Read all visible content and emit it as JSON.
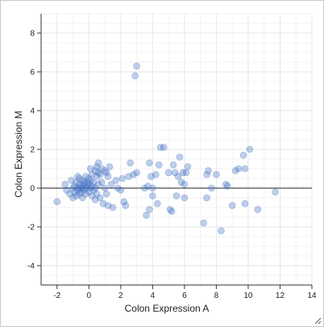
{
  "chart_data": {
    "type": "scatter",
    "title": "",
    "xlabel": "Colon Expression A",
    "ylabel": "Colon Expression M",
    "xlim": [
      -3,
      14
    ],
    "ylim": [
      -5,
      9
    ],
    "xticks": [
      -2,
      0,
      2,
      4,
      6,
      8,
      10,
      12,
      14
    ],
    "yticks": [
      -4,
      -2,
      0,
      2,
      4,
      6,
      8
    ],
    "grid": true,
    "zero_line": true,
    "point_color": "#4472c4",
    "point_opacity": 0.35,
    "points": [
      [
        -2.0,
        -0.7
      ],
      [
        -1.5,
        0.2
      ],
      [
        -1.4,
        -0.1
      ],
      [
        -1.2,
        -0.3
      ],
      [
        -1.1,
        0.4
      ],
      [
        -1.0,
        0.0
      ],
      [
        -1.0,
        -0.5
      ],
      [
        -0.9,
        0.1
      ],
      [
        -0.9,
        -0.2
      ],
      [
        -0.8,
        0.3
      ],
      [
        -0.8,
        -0.4
      ],
      [
        -0.7,
        0.6
      ],
      [
        -0.7,
        0.0
      ],
      [
        -0.7,
        -0.1
      ],
      [
        -0.6,
        0.2
      ],
      [
        -0.6,
        -0.3
      ],
      [
        -0.6,
        0.5
      ],
      [
        -0.5,
        0.0
      ],
      [
        -0.5,
        0.1
      ],
      [
        -0.5,
        -0.2
      ],
      [
        -0.4,
        0.4
      ],
      [
        -0.4,
        -0.5
      ],
      [
        -0.4,
        0.0
      ],
      [
        -0.3,
        0.2
      ],
      [
        -0.3,
        -0.1
      ],
      [
        -0.3,
        0.3
      ],
      [
        -0.2,
        0.0
      ],
      [
        -0.2,
        0.6
      ],
      [
        -0.2,
        -0.3
      ],
      [
        -0.1,
        0.1
      ],
      [
        -0.1,
        0.3
      ],
      [
        0.0,
        0.5
      ],
      [
        0.0,
        -0.2
      ],
      [
        0.0,
        0.2
      ],
      [
        0.1,
        0.4
      ],
      [
        0.1,
        0.0
      ],
      [
        0.1,
        1.0
      ],
      [
        0.2,
        0.1
      ],
      [
        0.2,
        -0.4
      ],
      [
        0.2,
        0.7
      ],
      [
        0.3,
        0.3
      ],
      [
        0.3,
        -0.1
      ],
      [
        0.4,
        0.9
      ],
      [
        0.4,
        0.0
      ],
      [
        0.4,
        -0.6
      ],
      [
        0.5,
        1.1
      ],
      [
        0.5,
        0.6
      ],
      [
        0.5,
        -0.3
      ],
      [
        0.6,
        1.3
      ],
      [
        0.6,
        0.8
      ],
      [
        0.6,
        0.2
      ],
      [
        0.7,
        0.7
      ],
      [
        0.7,
        -0.5
      ],
      [
        0.8,
        1.0
      ],
      [
        0.8,
        0.3
      ],
      [
        0.9,
        -0.8
      ],
      [
        1.0,
        0.9
      ],
      [
        1.0,
        0.0
      ],
      [
        1.1,
        0.8
      ],
      [
        1.1,
        -0.3
      ],
      [
        1.2,
        0.6
      ],
      [
        1.2,
        -0.9
      ],
      [
        1.3,
        1.1
      ],
      [
        1.4,
        0.2
      ],
      [
        1.5,
        -1.0
      ],
      [
        1.7,
        0.4
      ],
      [
        1.8,
        0.0
      ],
      [
        2.0,
        -0.1
      ],
      [
        2.1,
        0.5
      ],
      [
        2.2,
        -0.7
      ],
      [
        2.3,
        -0.9
      ],
      [
        2.5,
        0.6
      ],
      [
        2.6,
        1.3
      ],
      [
        2.8,
        0.7
      ],
      [
        2.9,
        5.8
      ],
      [
        3.0,
        6.3
      ],
      [
        3.0,
        0.8
      ],
      [
        3.5,
        0.0
      ],
      [
        3.6,
        -1.4
      ],
      [
        3.7,
        0.1
      ],
      [
        3.8,
        1.3
      ],
      [
        3.8,
        -1.1
      ],
      [
        3.9,
        0.6
      ],
      [
        4.0,
        -0.4
      ],
      [
        4.0,
        0.0
      ],
      [
        4.2,
        0.7
      ],
      [
        4.3,
        -0.8
      ],
      [
        4.4,
        1.2
      ],
      [
        4.5,
        2.1
      ],
      [
        4.7,
        2.1
      ],
      [
        5.0,
        0.8
      ],
      [
        5.1,
        -1.1
      ],
      [
        5.2,
        -1.2
      ],
      [
        5.3,
        1.2
      ],
      [
        5.4,
        0.8
      ],
      [
        5.5,
        -0.4
      ],
      [
        5.6,
        0.6
      ],
      [
        5.7,
        1.6
      ],
      [
        5.8,
        0.3
      ],
      [
        5.9,
        0.8
      ],
      [
        6.0,
        -0.5
      ],
      [
        6.0,
        0.2
      ],
      [
        6.1,
        0.8
      ],
      [
        6.2,
        1.1
      ],
      [
        7.2,
        -1.8
      ],
      [
        7.4,
        -0.5
      ],
      [
        7.4,
        0.7
      ],
      [
        7.5,
        0.9
      ],
      [
        7.7,
        0.0
      ],
      [
        8.0,
        0.7
      ],
      [
        8.3,
        -2.2
      ],
      [
        8.6,
        0.2
      ],
      [
        8.7,
        0.1
      ],
      [
        9.0,
        -0.9
      ],
      [
        9.2,
        0.9
      ],
      [
        9.4,
        1.0
      ],
      [
        9.7,
        1.7
      ],
      [
        9.8,
        -0.8
      ],
      [
        9.8,
        1.0
      ],
      [
        10.1,
        2.0
      ],
      [
        10.6,
        -1.1
      ],
      [
        11.7,
        -0.2
      ]
    ]
  }
}
